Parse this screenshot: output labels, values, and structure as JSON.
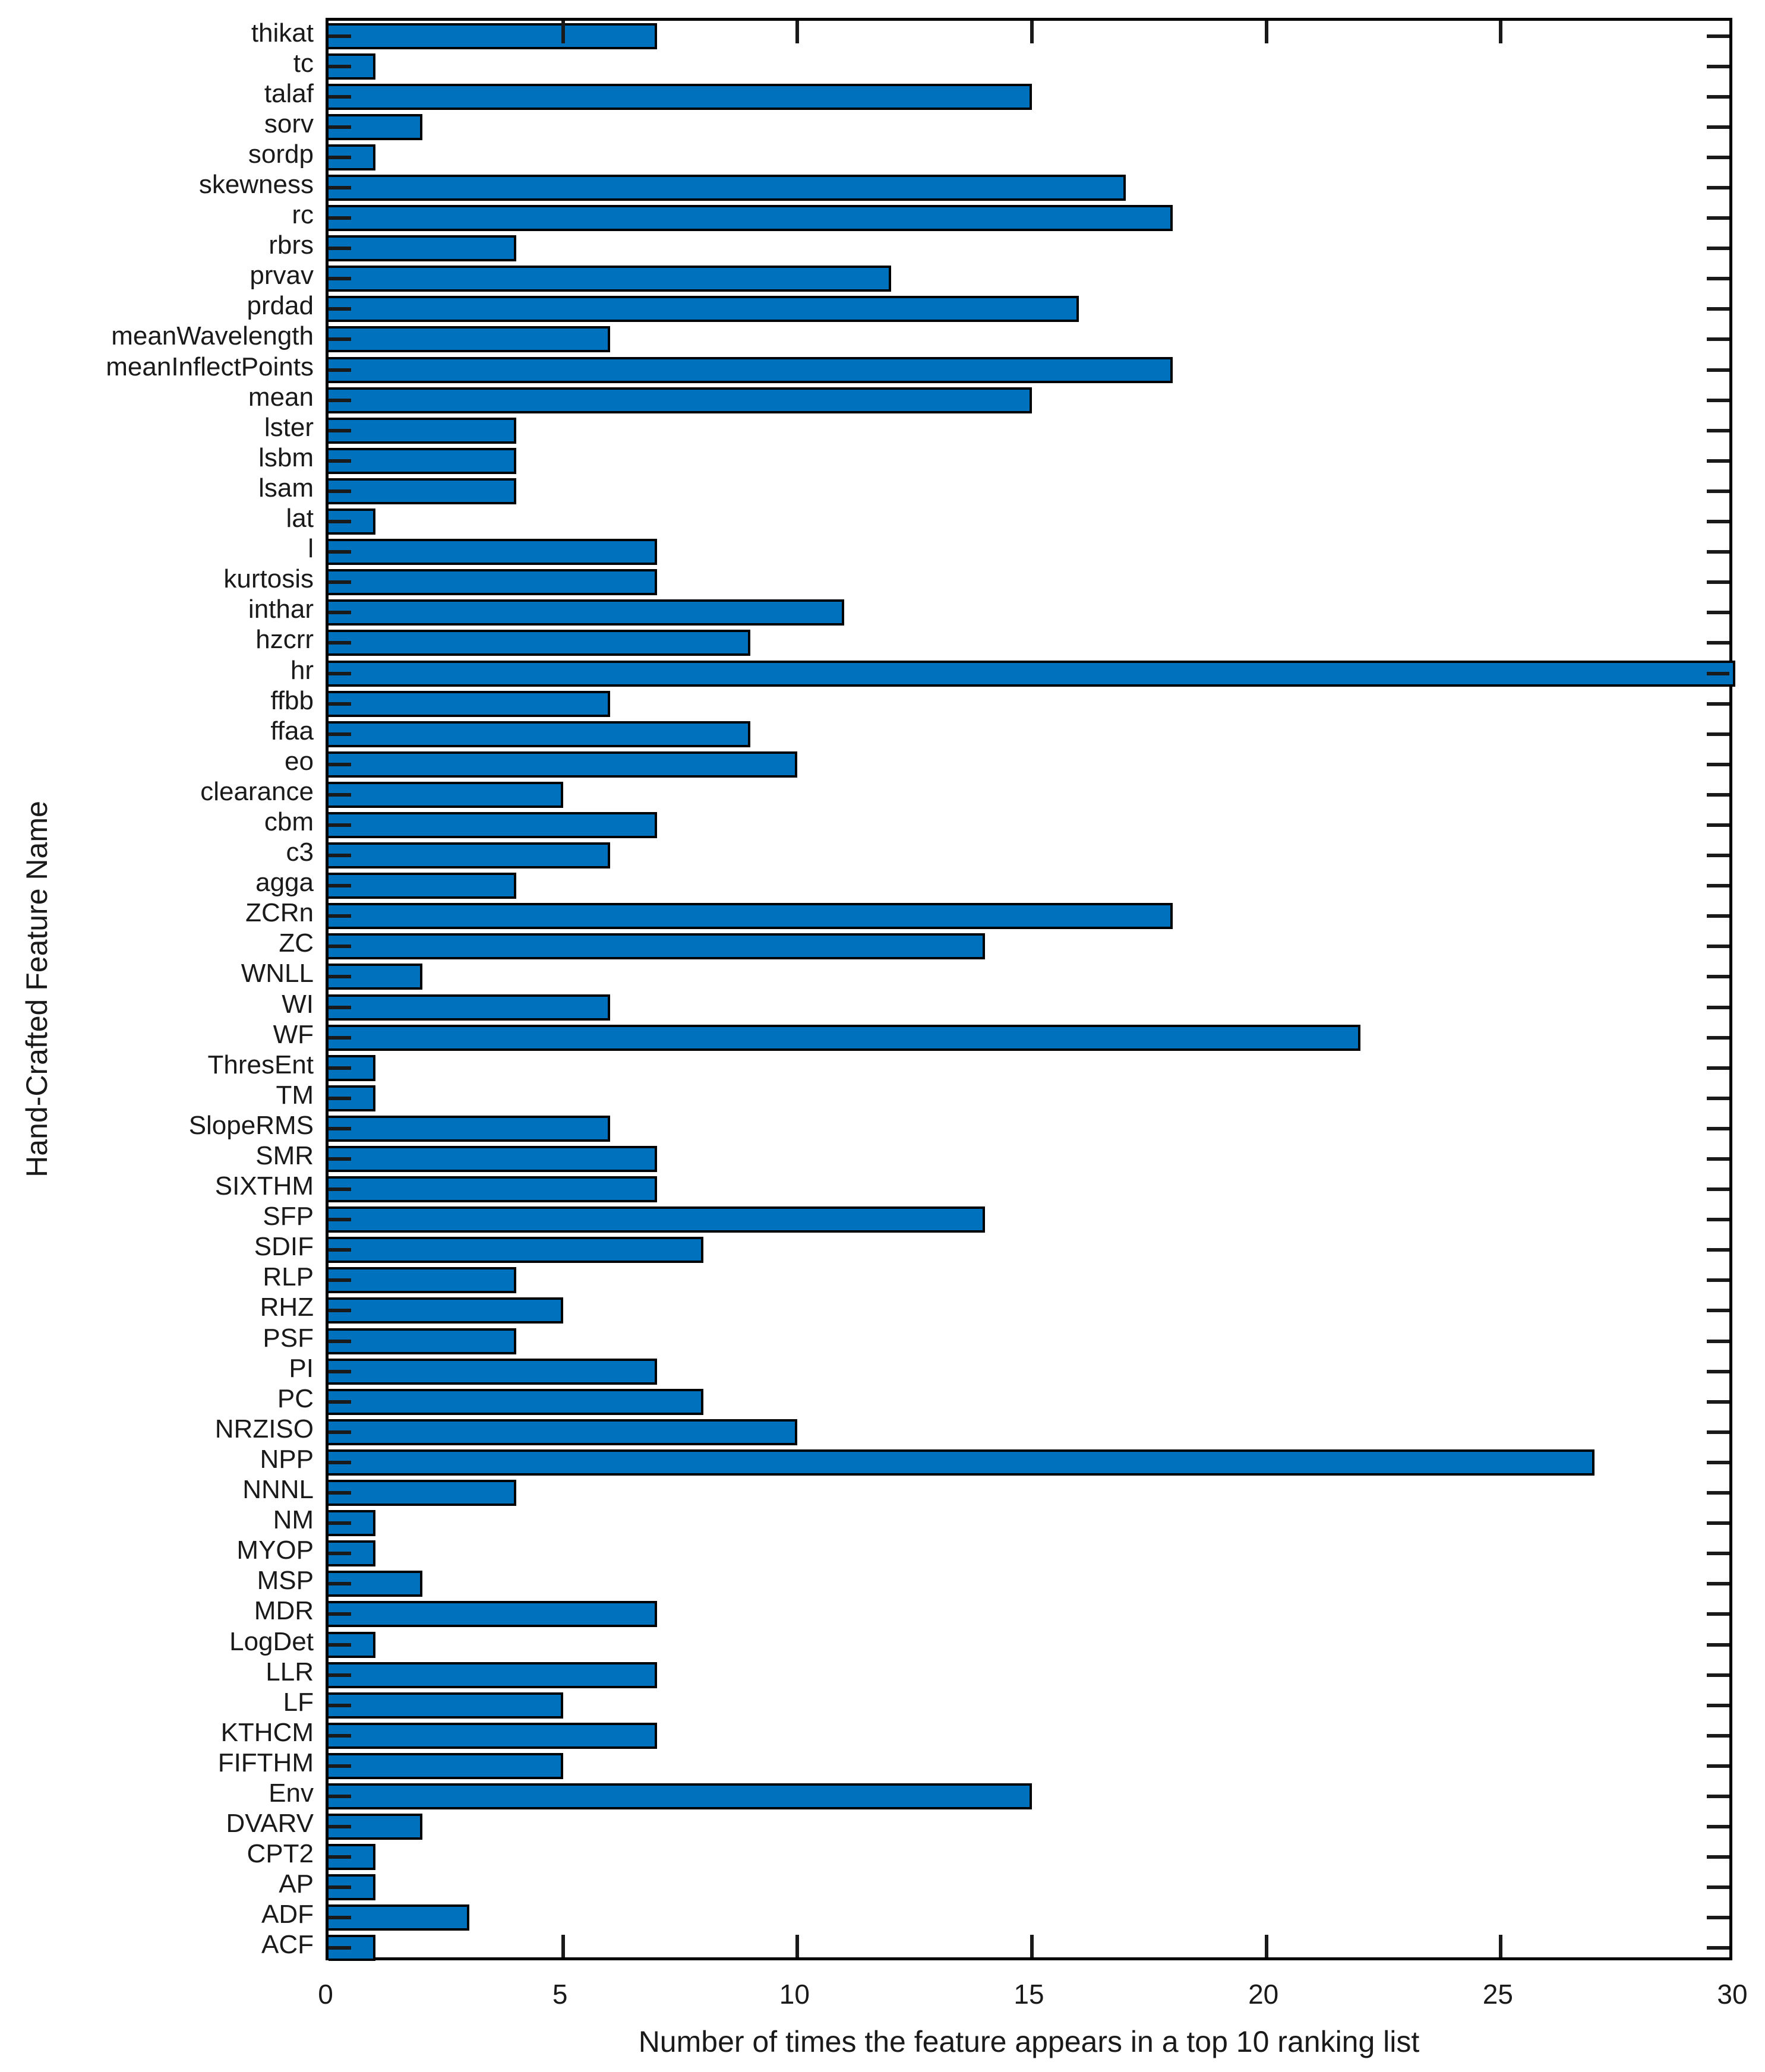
{
  "chart_data": {
    "type": "bar",
    "orientation": "horizontal",
    "title": "",
    "xlabel": "Number of times the feature appears in a top 10 ranking list",
    "ylabel": "Hand-Crafted Feature Name",
    "xlim": [
      0,
      30
    ],
    "x_ticks": [
      0,
      5,
      10,
      15,
      20,
      25,
      30
    ],
    "grid": false,
    "legend": null,
    "bar_color": "#0072BD",
    "bar_edge_color": "#000000",
    "axis_color": "#000000",
    "text_color": "#1a1a1a",
    "categories": [
      "thikat",
      "tc",
      "talaf",
      "sorv",
      "sordp",
      "skewness",
      "rc",
      "rbrs",
      "prvav",
      "prdad",
      "meanWavelength",
      "meanInflectPoints",
      "mean",
      "lster",
      "lsbm",
      "lsam",
      "lat",
      "l",
      "kurtosis",
      "inthar",
      "hzcrr",
      "hr",
      "ffbb",
      "ffaa",
      "eo",
      "clearance",
      "cbm",
      "c3",
      "agga",
      "ZCRn",
      "ZC",
      "WNLL",
      "WI",
      "WF",
      "ThresEnt",
      "TM",
      "SlopeRMS",
      "SMR",
      "SIXTHM",
      "SFP",
      "SDIF",
      "RLP",
      "RHZ",
      "PSF",
      "PI",
      "PC",
      "NRZISO",
      "NPP",
      "NNNL",
      "NM",
      "MYOP",
      "MSP",
      "MDR",
      "LogDet",
      "LLR",
      "LF",
      "KTHCM",
      "FIFTHM",
      "Env",
      "DVARV",
      "CPT2",
      "AP",
      "ADF",
      "ACF"
    ],
    "values": [
      7,
      1,
      15,
      2,
      1,
      17,
      18,
      4,
      12,
      16,
      6,
      18,
      15,
      4,
      4,
      4,
      1,
      7,
      7,
      11,
      9,
      30,
      6,
      9,
      10,
      5,
      7,
      6,
      4,
      18,
      14,
      2,
      6,
      22,
      1,
      1,
      6,
      7,
      7,
      14,
      8,
      4,
      5,
      4,
      7,
      8,
      10,
      27,
      4,
      1,
      1,
      2,
      7,
      1,
      7,
      5,
      7,
      5,
      15,
      2,
      1,
      1,
      3,
      1
    ]
  }
}
